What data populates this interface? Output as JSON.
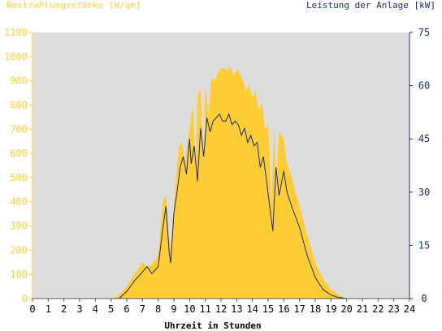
{
  "chart_data": {
    "type": "area",
    "left_axis_title": "Bestrahlungsstärke [W/qm]",
    "right_axis_title": "Leistung der Anlage [kW]",
    "xlabel": "Uhrzeit in Stunden",
    "x_ticks": [
      "0",
      "1",
      "2",
      "3",
      "4",
      "5",
      "6",
      "7",
      "8",
      "9",
      "10",
      "11",
      "12",
      "13",
      "14",
      "15",
      "16",
      "17",
      "18",
      "19",
      "20",
      "21",
      "22",
      "23",
      "24"
    ],
    "y_left_ticks": [
      "0",
      "100",
      "200",
      "300",
      "400",
      "500",
      "600",
      "700",
      "800",
      "900",
      "1000",
      "1100"
    ],
    "y_right_ticks": [
      "0",
      "15",
      "30",
      "45",
      "60",
      "75"
    ],
    "xlim": [
      0,
      24
    ],
    "ylim_left": [
      0,
      1100
    ],
    "ylim_right": [
      0,
      75
    ],
    "grid": false,
    "colors": {
      "irradiance": "#ffcc33",
      "power": "#1a2e6b",
      "plot_bg": "#dddddd",
      "left_axis": "#ffcc33",
      "right_axis": "#1a2e6b"
    },
    "series": [
      {
        "unit": "W/qm",
        "axis": "left",
        "x": [
          0,
          5.2,
          5.5,
          6.0,
          6.5,
          7.0,
          7.3,
          7.6,
          8.0,
          8.3,
          8.5,
          8.7,
          8.8,
          9.0,
          9.3,
          9.5,
          9.7,
          10.0,
          10.2,
          10.4,
          10.5,
          10.7,
          10.9,
          11.0,
          11.2,
          11.4,
          11.6,
          11.8,
          12.0,
          12.2,
          12.4,
          12.6,
          12.8,
          13.0,
          13.2,
          13.4,
          13.6,
          13.8,
          14.0,
          14.2,
          14.4,
          14.6,
          14.8,
          15.0,
          15.1,
          15.2,
          15.4,
          15.5,
          15.7,
          16.0,
          16.2,
          16.5,
          17.0,
          17.5,
          18.0,
          18.5,
          19.0,
          19.5,
          20.0,
          24
        ],
        "y": [
          0,
          0,
          15,
          50,
          100,
          150,
          130,
          140,
          180,
          400,
          430,
          250,
          200,
          380,
          620,
          650,
          560,
          700,
          800,
          500,
          830,
          870,
          550,
          880,
          760,
          920,
          900,
          930,
          950,
          955,
          940,
          960,
          920,
          950,
          930,
          900,
          860,
          880,
          830,
          860,
          780,
          810,
          700,
          720,
          600,
          380,
          720,
          450,
          690,
          660,
          560,
          500,
          380,
          260,
          150,
          80,
          40,
          15,
          0,
          0
        ]
      },
      {
        "unit": "kW",
        "axis": "right",
        "x": [
          0,
          5.5,
          6.0,
          6.5,
          7.0,
          7.3,
          7.6,
          8.0,
          8.3,
          8.5,
          8.7,
          8.8,
          9.0,
          9.2,
          9.4,
          9.6,
          9.8,
          10.0,
          10.1,
          10.3,
          10.5,
          10.7,
          10.9,
          11.1,
          11.3,
          11.5,
          11.7,
          11.9,
          12.1,
          12.3,
          12.5,
          12.7,
          12.9,
          13.1,
          13.3,
          13.5,
          13.7,
          13.9,
          14.1,
          14.3,
          14.5,
          14.7,
          14.9,
          15.1,
          15.3,
          15.5,
          15.7,
          16.0,
          16.2,
          16.5,
          17.0,
          17.5,
          18.0,
          18.5,
          19.0,
          19.5,
          20.0,
          24
        ],
        "y": [
          0,
          0,
          2,
          5,
          7.5,
          9,
          7,
          9,
          20,
          26,
          13,
          10,
          24,
          30,
          37,
          40,
          35,
          45,
          38,
          43,
          33,
          48,
          40,
          51,
          47,
          50,
          51,
          52,
          50,
          50,
          52,
          49,
          50,
          49,
          46,
          48,
          44,
          46,
          43,
          44,
          37,
          40,
          33,
          26,
          19,
          37,
          29,
          36,
          30,
          26,
          20,
          12,
          6,
          2.5,
          1,
          0.3,
          0,
          0
        ]
      }
    ]
  }
}
